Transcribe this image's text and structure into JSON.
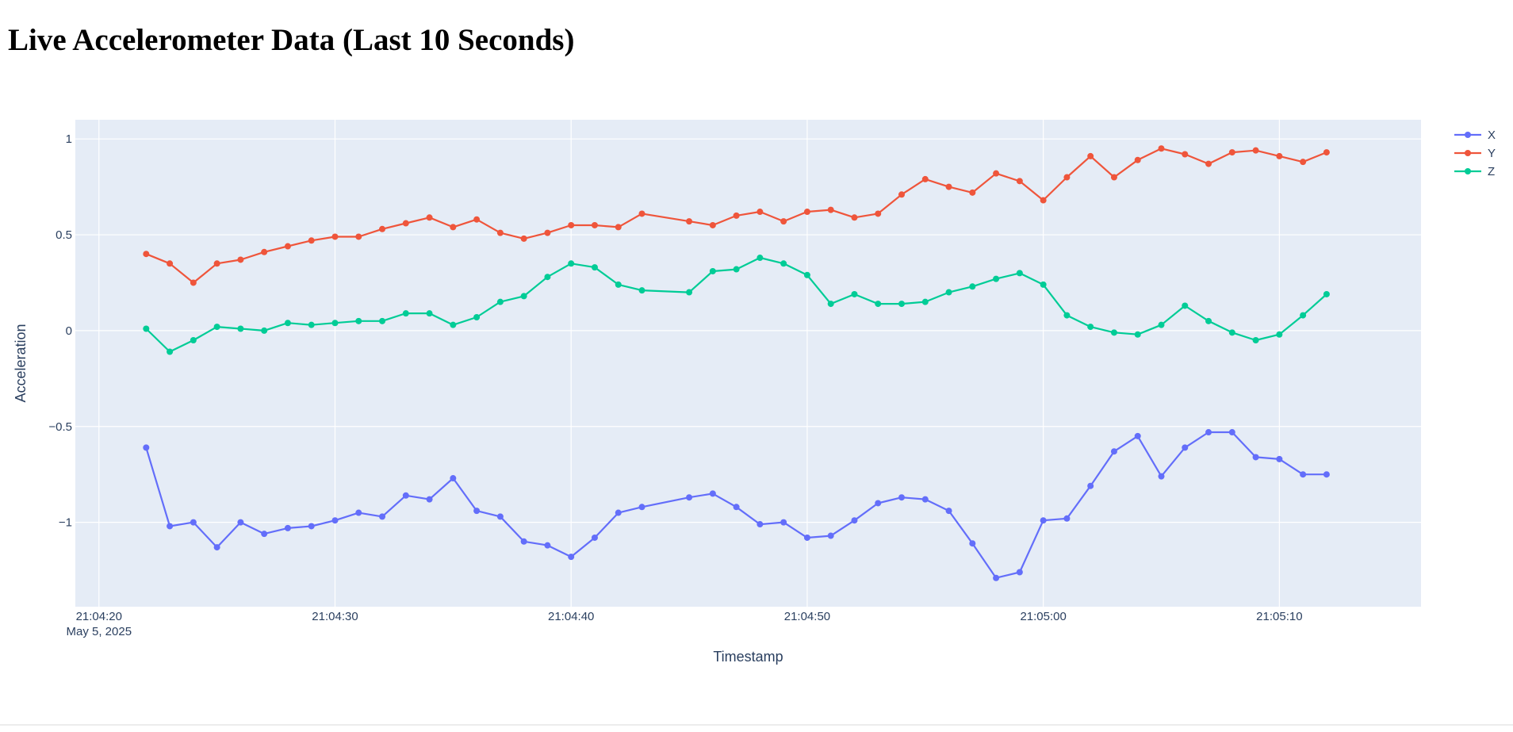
{
  "page": {
    "title": "Live Accelerometer Data (Last 10 Seconds)"
  },
  "chart_data": {
    "type": "line",
    "mode": "lines+markers",
    "xlabel": "Timestamp",
    "ylabel": "Acceleration",
    "date_label": "May 5, 2025",
    "x_start": "21:04:22",
    "x_step_seconds": 1,
    "xlim": [
      "21:04:19",
      "21:05:16"
    ],
    "ylim": [
      -1.44,
      1.1
    ],
    "x_ticks": [
      "21:04:20",
      "21:04:30",
      "21:04:40",
      "21:04:50",
      "21:05:00",
      "21:05:10"
    ],
    "y_ticks": [
      1,
      0.5,
      0,
      -0.5,
      -1
    ],
    "y_tick_labels": [
      "1",
      "0.5",
      "0",
      "−0.5",
      "−1"
    ],
    "grid": true,
    "legend_position": "top-right",
    "series": [
      {
        "name": "X",
        "color": "#636efa",
        "points": [
          [
            "21:04:22",
            -0.61
          ],
          [
            "21:04:23",
            -1.02
          ],
          [
            "21:04:24",
            -1.0
          ],
          [
            "21:04:25",
            -1.13
          ],
          [
            "21:04:26",
            -1.0
          ],
          [
            "21:04:27",
            -1.06
          ],
          [
            "21:04:28",
            -1.03
          ],
          [
            "21:04:29",
            -1.02
          ],
          [
            "21:04:30",
            -0.99
          ],
          [
            "21:04:31",
            -0.95
          ],
          [
            "21:04:32",
            -0.97
          ],
          [
            "21:04:33",
            -0.86
          ],
          [
            "21:04:34",
            -0.88
          ],
          [
            "21:04:35",
            -0.77
          ],
          [
            "21:04:36",
            -0.94
          ],
          [
            "21:04:37",
            -0.97
          ],
          [
            "21:04:38",
            -1.1
          ],
          [
            "21:04:39",
            -1.12
          ],
          [
            "21:04:40",
            -1.18
          ],
          [
            "21:04:41",
            -1.08
          ],
          [
            "21:04:42",
            -0.95
          ],
          [
            "21:04:43",
            -0.92
          ],
          [
            "21:04:45",
            -0.87
          ],
          [
            "21:04:46",
            -0.85
          ],
          [
            "21:04:47",
            -0.92
          ],
          [
            "21:04:48",
            -1.01
          ],
          [
            "21:04:49",
            -1.0
          ],
          [
            "21:04:50",
            -1.08
          ],
          [
            "21:04:51",
            -1.07
          ],
          [
            "21:04:52",
            -0.99
          ],
          [
            "21:04:53",
            -0.9
          ],
          [
            "21:04:54",
            -0.87
          ],
          [
            "21:04:55",
            -0.88
          ],
          [
            "21:04:56",
            -0.94
          ],
          [
            "21:04:57",
            -1.11
          ],
          [
            "21:04:58",
            -1.29
          ],
          [
            "21:04:59",
            -1.26
          ],
          [
            "21:05:00",
            -0.99
          ],
          [
            "21:05:01",
            -0.98
          ],
          [
            "21:05:02",
            -0.81
          ],
          [
            "21:05:03",
            -0.63
          ],
          [
            "21:05:04",
            -0.55
          ],
          [
            "21:05:05",
            -0.76
          ],
          [
            "21:05:06",
            -0.61
          ],
          [
            "21:05:07",
            -0.53
          ],
          [
            "21:05:08",
            -0.53
          ],
          [
            "21:05:09",
            -0.66
          ],
          [
            "21:05:10",
            -0.67
          ],
          [
            "21:05:11",
            -0.75
          ],
          [
            "21:05:12",
            -0.75
          ]
        ]
      },
      {
        "name": "Y",
        "color": "#ef553b",
        "points": [
          [
            "21:04:22",
            0.4
          ],
          [
            "21:04:23",
            0.35
          ],
          [
            "21:04:24",
            0.25
          ],
          [
            "21:04:25",
            0.35
          ],
          [
            "21:04:26",
            0.37
          ],
          [
            "21:04:27",
            0.41
          ],
          [
            "21:04:28",
            0.44
          ],
          [
            "21:04:29",
            0.47
          ],
          [
            "21:04:30",
            0.49
          ],
          [
            "21:04:31",
            0.49
          ],
          [
            "21:04:32",
            0.53
          ],
          [
            "21:04:33",
            0.56
          ],
          [
            "21:04:34",
            0.59
          ],
          [
            "21:04:35",
            0.54
          ],
          [
            "21:04:36",
            0.58
          ],
          [
            "21:04:37",
            0.51
          ],
          [
            "21:04:38",
            0.48
          ],
          [
            "21:04:39",
            0.51
          ],
          [
            "21:04:40",
            0.55
          ],
          [
            "21:04:41",
            0.55
          ],
          [
            "21:04:42",
            0.54
          ],
          [
            "21:04:43",
            0.61
          ],
          [
            "21:04:45",
            0.57
          ],
          [
            "21:04:46",
            0.55
          ],
          [
            "21:04:47",
            0.6
          ],
          [
            "21:04:48",
            0.62
          ],
          [
            "21:04:49",
            0.57
          ],
          [
            "21:04:50",
            0.62
          ],
          [
            "21:04:51",
            0.63
          ],
          [
            "21:04:52",
            0.59
          ],
          [
            "21:04:53",
            0.61
          ],
          [
            "21:04:54",
            0.71
          ],
          [
            "21:04:55",
            0.79
          ],
          [
            "21:04:56",
            0.75
          ],
          [
            "21:04:57",
            0.72
          ],
          [
            "21:04:58",
            0.82
          ],
          [
            "21:04:59",
            0.78
          ],
          [
            "21:05:00",
            0.68
          ],
          [
            "21:05:01",
            0.8
          ],
          [
            "21:05:02",
            0.91
          ],
          [
            "21:05:03",
            0.8
          ],
          [
            "21:05:04",
            0.89
          ],
          [
            "21:05:05",
            0.95
          ],
          [
            "21:05:06",
            0.92
          ],
          [
            "21:05:07",
            0.87
          ],
          [
            "21:05:08",
            0.93
          ],
          [
            "21:05:09",
            0.94
          ],
          [
            "21:05:10",
            0.91
          ],
          [
            "21:05:11",
            0.88
          ],
          [
            "21:05:12",
            0.93
          ]
        ]
      },
      {
        "name": "Z",
        "color": "#00cc96",
        "points": [
          [
            "21:04:22",
            0.01
          ],
          [
            "21:04:23",
            -0.11
          ],
          [
            "21:04:24",
            -0.05
          ],
          [
            "21:04:25",
            0.02
          ],
          [
            "21:04:26",
            0.01
          ],
          [
            "21:04:27",
            0.0
          ],
          [
            "21:04:28",
            0.04
          ],
          [
            "21:04:29",
            0.03
          ],
          [
            "21:04:30",
            0.04
          ],
          [
            "21:04:31",
            0.05
          ],
          [
            "21:04:32",
            0.05
          ],
          [
            "21:04:33",
            0.09
          ],
          [
            "21:04:34",
            0.09
          ],
          [
            "21:04:35",
            0.03
          ],
          [
            "21:04:36",
            0.07
          ],
          [
            "21:04:37",
            0.15
          ],
          [
            "21:04:38",
            0.18
          ],
          [
            "21:04:39",
            0.28
          ],
          [
            "21:04:40",
            0.35
          ],
          [
            "21:04:41",
            0.33
          ],
          [
            "21:04:42",
            0.24
          ],
          [
            "21:04:43",
            0.21
          ],
          [
            "21:04:45",
            0.2
          ],
          [
            "21:04:46",
            0.31
          ],
          [
            "21:04:47",
            0.32
          ],
          [
            "21:04:48",
            0.38
          ],
          [
            "21:04:49",
            0.35
          ],
          [
            "21:04:50",
            0.29
          ],
          [
            "21:04:51",
            0.14
          ],
          [
            "21:04:52",
            0.19
          ],
          [
            "21:04:53",
            0.14
          ],
          [
            "21:04:54",
            0.14
          ],
          [
            "21:04:55",
            0.15
          ],
          [
            "21:04:56",
            0.2
          ],
          [
            "21:04:57",
            0.23
          ],
          [
            "21:04:58",
            0.27
          ],
          [
            "21:04:59",
            0.3
          ],
          [
            "21:05:00",
            0.24
          ],
          [
            "21:05:01",
            0.08
          ],
          [
            "21:05:02",
            0.02
          ],
          [
            "21:05:03",
            -0.01
          ],
          [
            "21:05:04",
            -0.02
          ],
          [
            "21:05:05",
            0.03
          ],
          [
            "21:05:06",
            0.13
          ],
          [
            "21:05:07",
            0.05
          ],
          [
            "21:05:08",
            -0.01
          ],
          [
            "21:05:09",
            -0.05
          ],
          [
            "21:05:10",
            -0.02
          ],
          [
            "21:05:11",
            0.08
          ],
          [
            "21:05:12",
            0.19
          ]
        ]
      }
    ]
  },
  "colors": {
    "plot_background": "#e5ecf6",
    "gridline": "#ffffff",
    "axis_text": "#2a3f5f",
    "tick_text": "#2a3f5f"
  }
}
